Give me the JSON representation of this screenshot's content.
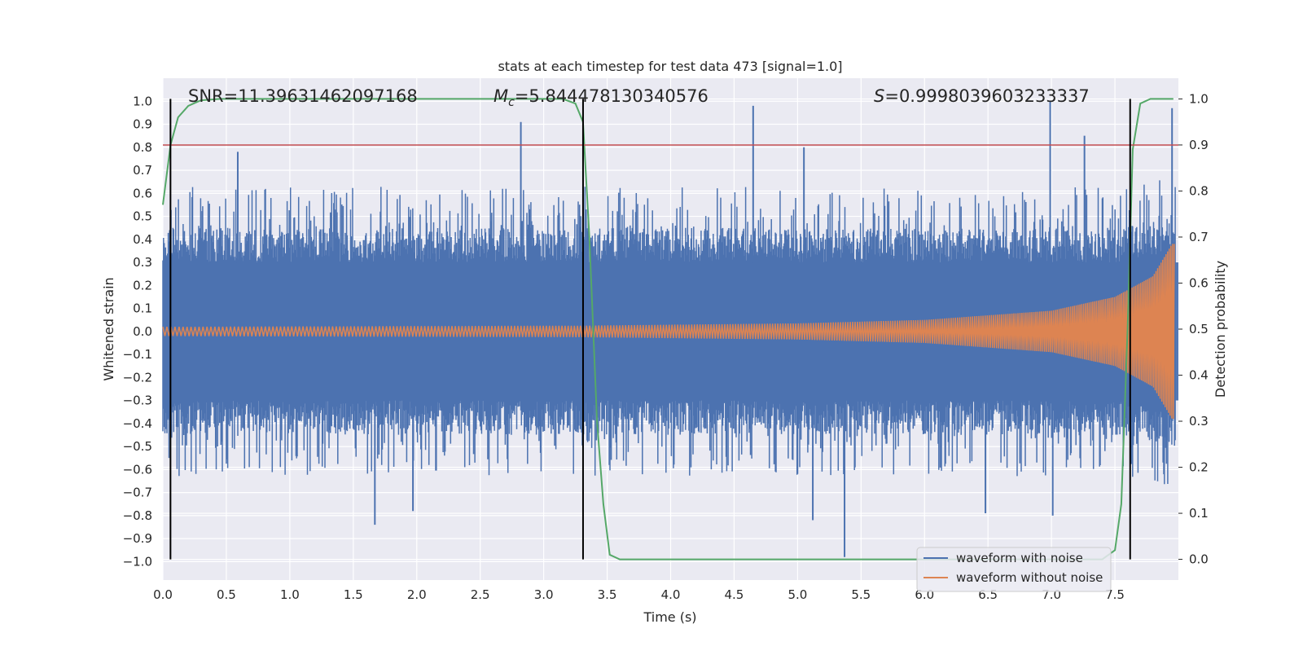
{
  "chart_data": {
    "type": "line",
    "title": "stats at each timestep for test data 473 [signal=1.0]",
    "xlabel": "Time (s)",
    "ylabel": "Whitened strain",
    "y2label": "Detection probability",
    "xlim": [
      0.0,
      8.0
    ],
    "ylim": [
      -1.08,
      1.1
    ],
    "y2lim": [
      -0.045,
      1.045
    ],
    "grid": true,
    "background_color": "#eaeaf2",
    "xticks": [
      "0.0",
      "0.5",
      "1.0",
      "1.5",
      "2.0",
      "2.5",
      "3.0",
      "3.5",
      "4.0",
      "4.5",
      "5.0",
      "5.5",
      "6.0",
      "6.5",
      "7.0",
      "7.5"
    ],
    "yticks": [
      "1.0",
      "0.9",
      "0.8",
      "0.7",
      "0.6",
      "0.5",
      "0.4",
      "0.3",
      "0.2",
      "0.1",
      "0.0",
      "−0.1",
      "−0.2",
      "−0.3",
      "−0.4",
      "−0.5",
      "−0.6",
      "−0.7",
      "−0.8",
      "−0.9",
      "−1.0"
    ],
    "y2ticks": [
      "1.0",
      "0.9",
      "0.8",
      "0.7",
      "0.6",
      "0.5",
      "0.4",
      "0.3",
      "0.2",
      "0.1",
      "0.0"
    ],
    "annotations": {
      "snr": "SNR=11.39631462097168",
      "mc_symbol": "M",
      "mc_subscript": "c",
      "mc_value": "=5.844478130340576",
      "s_symbol": "S",
      "s_value": "=0.9998039603233337"
    },
    "threshold": {
      "y2": 0.9,
      "color": "#c44e52"
    },
    "vertical_lines": {
      "x": [
        0.06,
        3.31,
        7.62
      ],
      "color": "#000000"
    },
    "legend": {
      "placement": "lower-right"
    },
    "series": [
      {
        "name": "waveform with noise",
        "color": "#4c72b0",
        "description_kind": "noisy whitened strain",
        "envelope_inner": 0.3,
        "envelope_outer": 0.6,
        "peaks": [
          {
            "x": 2.82,
            "y": 0.91
          },
          {
            "x": 4.65,
            "y": 0.98
          },
          {
            "x": 5.05,
            "y": 0.8
          },
          {
            "x": 6.99,
            "y": 1.0
          },
          {
            "x": 7.26,
            "y": 0.85
          },
          {
            "x": 7.95,
            "y": 0.97
          },
          {
            "x": 0.59,
            "y": 0.78
          },
          {
            "x": 1.67,
            "y": -0.84
          },
          {
            "x": 1.97,
            "y": -0.78
          },
          {
            "x": 5.37,
            "y": -0.98
          },
          {
            "x": 5.12,
            "y": -0.82
          },
          {
            "x": 7.01,
            "y": -0.8
          },
          {
            "x": 6.48,
            "y": -0.79
          }
        ]
      },
      {
        "name": "waveform without noise",
        "color": "#dd8452",
        "amplitude_points": [
          {
            "x": 0.0,
            "y": 0.02
          },
          {
            "x": 3.3,
            "y": 0.025
          },
          {
            "x": 5.0,
            "y": 0.035
          },
          {
            "x": 6.0,
            "y": 0.05
          },
          {
            "x": 7.0,
            "y": 0.09
          },
          {
            "x": 7.5,
            "y": 0.15
          },
          {
            "x": 7.8,
            "y": 0.24
          },
          {
            "x": 7.95,
            "y": 0.38
          }
        ]
      },
      {
        "name": "detection probability",
        "axis": "right",
        "color": "#55a868",
        "points": [
          [
            0.0,
            0.77
          ],
          [
            0.06,
            0.9
          ],
          [
            0.12,
            0.96
          ],
          [
            0.2,
            0.985
          ],
          [
            0.3,
            0.997
          ],
          [
            0.45,
            1.0
          ],
          [
            3.15,
            1.0
          ],
          [
            3.25,
            0.99
          ],
          [
            3.31,
            0.95
          ],
          [
            3.36,
            0.7
          ],
          [
            3.42,
            0.3
          ],
          [
            3.47,
            0.12
          ],
          [
            3.52,
            0.01
          ],
          [
            3.6,
            0.0
          ],
          [
            7.4,
            0.0
          ],
          [
            7.5,
            0.02
          ],
          [
            7.55,
            0.12
          ],
          [
            7.6,
            0.5
          ],
          [
            7.64,
            0.89
          ],
          [
            7.7,
            0.99
          ],
          [
            7.78,
            1.0
          ],
          [
            7.96,
            1.0
          ]
        ]
      }
    ]
  }
}
